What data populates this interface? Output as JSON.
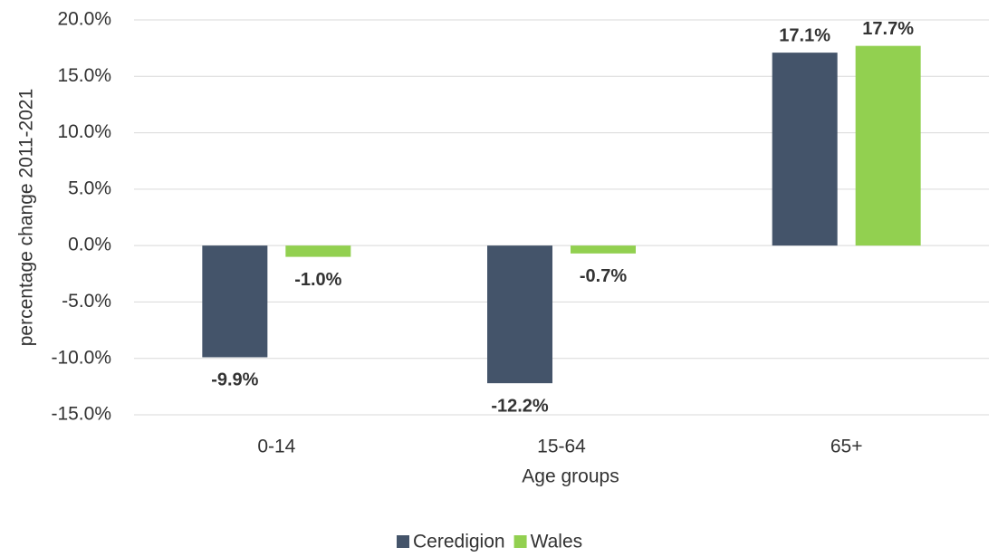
{
  "chart_data": {
    "type": "bar",
    "categories": [
      "0-14",
      "15-64",
      "65+"
    ],
    "series": [
      {
        "name": "Ceredigion",
        "color": "#44546a",
        "values": [
          -9.9,
          -12.2,
          17.1
        ],
        "value_labels": [
          "-9.9%",
          "-12.2%",
          "17.1%"
        ]
      },
      {
        "name": "Wales",
        "color": "#92d050",
        "values": [
          -1.0,
          -0.7,
          17.7
        ],
        "value_labels": [
          "-1.0%",
          "-0.7%",
          "17.7%"
        ]
      }
    ],
    "ylim": [
      -15,
      20
    ],
    "yticks": [
      {
        "value": -15,
        "label": "-15.0%"
      },
      {
        "value": -10,
        "label": "-10.0%"
      },
      {
        "value": -5,
        "label": "-5.0%"
      },
      {
        "value": 0,
        "label": "0.0%"
      },
      {
        "value": 5,
        "label": "5.0%"
      },
      {
        "value": 10,
        "label": "10.0%"
      },
      {
        "value": 15,
        "label": "15.0%"
      },
      {
        "value": 20,
        "label": "20.0%"
      }
    ],
    "y_label": "percentage change 2011-2021",
    "x_label": "Age groups",
    "grid": true,
    "legend": "bottom"
  }
}
